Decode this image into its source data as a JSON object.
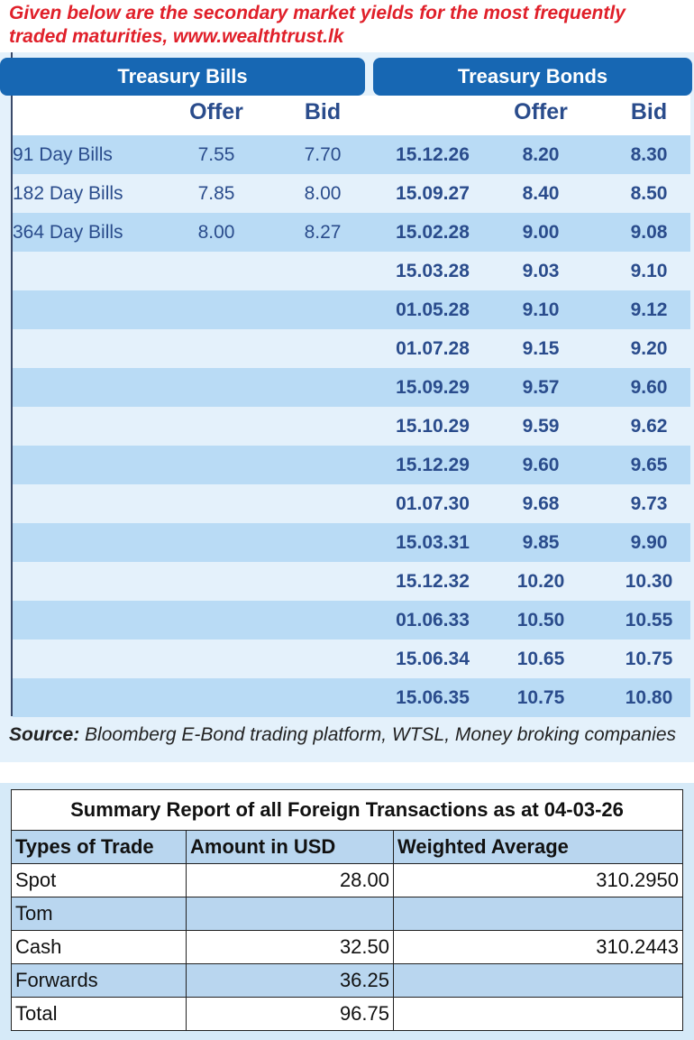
{
  "intro": [
    "Given below are the secondary market yields for the most frequently",
    "traded maturities, www.wealthtrust.lk"
  ],
  "bills": {
    "title": "Treasury Bills",
    "columns": [
      "Offer",
      "Bid"
    ],
    "rows": [
      [
        "91 Day Bills",
        "7.55",
        "7.70"
      ],
      [
        "182 Day Bills",
        "7.85",
        "8.00"
      ],
      [
        "364 Day Bills",
        "8.00",
        "8.27"
      ]
    ]
  },
  "bonds": {
    "title": "Treasury Bonds",
    "columns": [
      "Offer",
      "Bid"
    ],
    "rows": [
      [
        "15.12.26",
        "8.20",
        "8.30"
      ],
      [
        "15.09.27",
        "8.40",
        "8.50"
      ],
      [
        "15.02.28",
        "9.00",
        "9.08"
      ],
      [
        "15.03.28",
        "9.03",
        "9.10"
      ],
      [
        "01.05.28",
        "9.10",
        "9.12"
      ],
      [
        "01.07.28",
        "9.15",
        "9.20"
      ],
      [
        "15.09.29",
        "9.57",
        "9.60"
      ],
      [
        "15.10.29",
        "9.59",
        "9.62"
      ],
      [
        "15.12.29",
        "9.60",
        "9.65"
      ],
      [
        "01.07.30",
        "9.68",
        "9.73"
      ],
      [
        "15.03.31",
        "9.85",
        "9.90"
      ],
      [
        "15.12.32",
        "10.20",
        "10.30"
      ],
      [
        "01.06.33",
        "10.50",
        "10.55"
      ],
      [
        "15.06.34",
        "10.65",
        "10.75"
      ],
      [
        "15.06.35",
        "10.75",
        "10.80"
      ]
    ]
  },
  "source": {
    "label": "Source:",
    "text": "Bloomberg E-Bond trading platform, WTSL, Money broking companies"
  },
  "fx": {
    "title": "Summary Report of all Foreign Transactions as at 04-03-26",
    "columns": [
      "Types of Trade",
      "Amount in USD",
      "Weighted Average"
    ],
    "rows": [
      [
        "Spot",
        "28.00",
        "310.2950"
      ],
      [
        "Tom",
        null,
        null
      ],
      [
        "Cash",
        "32.50",
        "310.2443"
      ],
      [
        "Forwards",
        "36.25",
        null
      ],
      [
        "Total",
        "96.75",
        null
      ]
    ]
  }
}
